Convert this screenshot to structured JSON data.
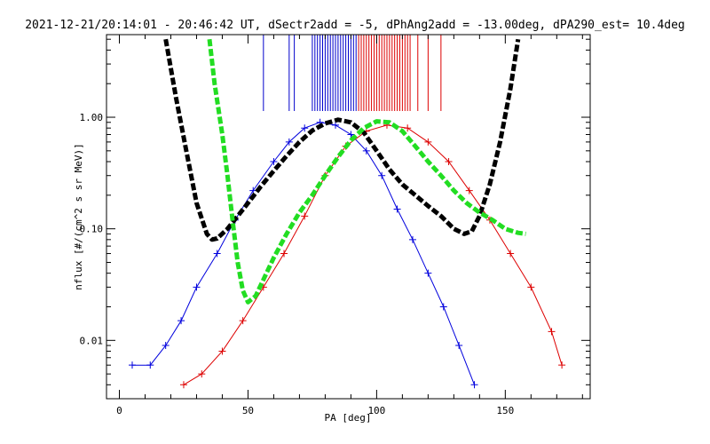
{
  "chart_data": {
    "type": "line",
    "title": "2021-12-21/20:14:01 - 20:46:42 UT, dSectr2add = -5, dPhAng2add = -13.00deg, dPA290_est=  10.4deg",
    "xlabel": "PA [deg]",
    "ylabel": "nflux [#/(cm^2 s sr MeV)]",
    "xlim": [
      -5,
      183
    ],
    "ylim": [
      0.003,
      5.5
    ],
    "yscale": "log",
    "x_ticks": [
      0,
      50,
      100,
      150
    ],
    "x_tick_labels": [
      "0",
      "50",
      "100",
      "150"
    ],
    "y_ticks": [
      0.01,
      0.1,
      1.0
    ],
    "y_tick_labels": [
      "0.01",
      "0.10",
      "1.00"
    ],
    "grid": false,
    "series": [
      {
        "color": "#000000",
        "style": "thick-dashed",
        "x": [
          18,
          22,
          26,
          30,
          34,
          36,
          38,
          42,
          46,
          50,
          55,
          60,
          65,
          70,
          75,
          80,
          85,
          90,
          95,
          100,
          105,
          110,
          115,
          120,
          125,
          130,
          134,
          137,
          140,
          144,
          148,
          152,
          155
        ],
        "y": [
          5,
          1.5,
          0.5,
          0.17,
          0.09,
          0.08,
          0.082,
          0.1,
          0.13,
          0.17,
          0.24,
          0.33,
          0.45,
          0.6,
          0.76,
          0.88,
          0.95,
          0.9,
          0.73,
          0.5,
          0.34,
          0.25,
          0.2,
          0.16,
          0.13,
          0.1,
          0.09,
          0.095,
          0.13,
          0.25,
          0.6,
          1.8,
          5
        ]
      },
      {
        "color": "#22dd22",
        "style": "thick-dashed",
        "x": [
          35,
          37,
          40,
          42,
          44,
          46,
          48,
          50,
          53,
          56,
          60,
          65,
          70,
          75,
          80,
          85,
          90,
          95,
          100,
          105,
          110,
          115,
          120,
          125,
          130,
          135,
          140,
          145,
          150,
          155,
          158
        ],
        "y": [
          5,
          2,
          0.7,
          0.3,
          0.12,
          0.05,
          0.028,
          0.022,
          0.025,
          0.035,
          0.055,
          0.09,
          0.14,
          0.2,
          0.3,
          0.44,
          0.62,
          0.8,
          0.92,
          0.9,
          0.75,
          0.55,
          0.4,
          0.3,
          0.22,
          0.17,
          0.14,
          0.12,
          0.1,
          0.092,
          0.09
        ]
      },
      {
        "color": "#0000dd",
        "style": "thin-plus",
        "x": [
          5,
          12,
          18,
          24,
          30,
          38,
          45,
          52,
          60,
          66,
          72,
          78,
          84,
          90,
          96,
          102,
          108,
          114,
          120,
          126,
          132,
          138
        ],
        "y": [
          0.006,
          0.006,
          0.009,
          0.015,
          0.03,
          0.06,
          0.12,
          0.22,
          0.4,
          0.6,
          0.8,
          0.9,
          0.85,
          0.7,
          0.5,
          0.3,
          0.15,
          0.08,
          0.04,
          0.02,
          0.009,
          0.004
        ]
      },
      {
        "color": "#dd0000",
        "style": "thin-plus",
        "x": [
          25,
          32,
          40,
          48,
          56,
          64,
          72,
          80,
          88,
          96,
          104,
          112,
          120,
          128,
          136,
          144,
          152,
          160,
          168,
          172
        ],
        "y": [
          0.004,
          0.005,
          0.008,
          0.015,
          0.03,
          0.06,
          0.13,
          0.3,
          0.55,
          0.75,
          0.85,
          0.8,
          0.6,
          0.4,
          0.22,
          0.12,
          0.06,
          0.03,
          0.012,
          0.006
        ]
      }
    ],
    "marker_lines": {
      "color": "#0000cc",
      "x": [
        56,
        66,
        68,
        75,
        76,
        77,
        78,
        79,
        80,
        81,
        82,
        83,
        84,
        85,
        86,
        87,
        88,
        89,
        90,
        91,
        92
      ]
    },
    "marker_lines_red": {
      "color": "#dd0000",
      "x": [
        93,
        94,
        95,
        96,
        97,
        98,
        99,
        100,
        101,
        102,
        103,
        104,
        105,
        106,
        107,
        108,
        109,
        110,
        111,
        112,
        113,
        116,
        120,
        125
      ]
    }
  }
}
